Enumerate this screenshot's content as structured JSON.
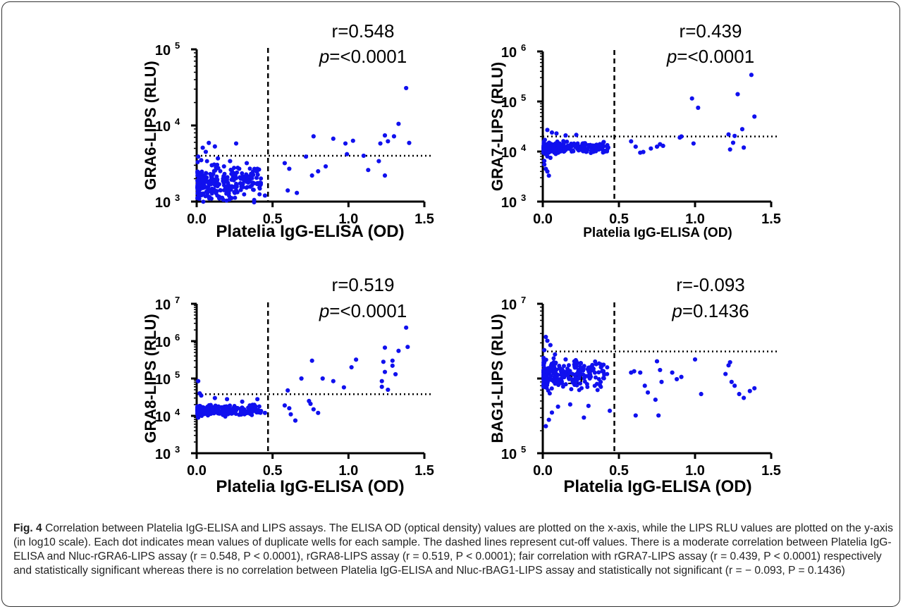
{
  "chart_data": [
    {
      "type": "scatter",
      "xlabel": "Platelia IgG-ELISA (OD)",
      "ylabel": "GRA6-LIPS (RLU)",
      "y_scale": "log10",
      "xlim": [
        0,
        1.5
      ],
      "ylim": [
        1000,
        100000
      ],
      "x_ticks": [
        "0.0",
        "0.5",
        "1.0",
        "1.5"
      ],
      "y_ticks": [
        "10",
        "10",
        "10"
      ],
      "y_tick_exponents": [
        "3",
        "4",
        "5"
      ],
      "stat_r": "r=0.548",
      "stat_p_label": "p",
      "stat_p_value": "=<0.0001",
      "x_cutoff": 0.47,
      "y_cutoff": 4000,
      "point_color": "#1010ee",
      "points": [
        [
          0.58,
          3200
        ],
        [
          0.61,
          2700
        ],
        [
          0.6,
          1400
        ],
        [
          0.66,
          1300
        ],
        [
          0.72,
          3900
        ],
        [
          0.77,
          7200
        ],
        [
          0.76,
          2200
        ],
        [
          0.8,
          2500
        ],
        [
          0.85,
          2900
        ],
        [
          0.9,
          6700
        ],
        [
          0.98,
          5800
        ],
        [
          0.99,
          4200
        ],
        [
          1.03,
          6300
        ],
        [
          1.1,
          4000
        ],
        [
          1.13,
          2600
        ],
        [
          1.2,
          3400
        ],
        [
          1.21,
          5800
        ],
        [
          1.24,
          2200
        ],
        [
          1.24,
          7400
        ],
        [
          1.26,
          6200
        ],
        [
          1.3,
          7200
        ],
        [
          1.33,
          10500
        ],
        [
          1.38,
          31000
        ],
        [
          1.4,
          5900
        ],
        [
          0.04,
          5100
        ],
        [
          0.08,
          5900
        ],
        [
          0.12,
          5300
        ],
        [
          0.26,
          5800
        ],
        [
          0.06,
          4500
        ],
        [
          0.01,
          3900
        ],
        [
          0.03,
          3500
        ],
        [
          0.14,
          3700
        ],
        [
          0.22,
          3400
        ],
        [
          0.33,
          3200
        ],
        [
          0.1,
          3000
        ],
        [
          0.18,
          2900
        ],
        [
          0.28,
          2700
        ],
        [
          0.4,
          2700
        ],
        [
          0.36,
          2300
        ],
        [
          0.02,
          1200
        ],
        [
          0.07,
          1300
        ],
        [
          0.15,
          1100
        ],
        [
          0.45,
          1200
        ]
      ]
    },
    {
      "type": "scatter",
      "xlabel": "Platelia IgG-ELISA (OD)",
      "ylabel": "GRA7-LIPS (RLU)",
      "y_scale": "log10",
      "xlim": [
        0,
        1.5
      ],
      "ylim": [
        1000,
        1000000
      ],
      "x_ticks": [
        "0.0",
        "0.5",
        "1.0",
        "1.5"
      ],
      "y_ticks": [
        "10",
        "10",
        "10",
        "10"
      ],
      "y_tick_exponents": [
        "3",
        "4",
        "5",
        "6"
      ],
      "stat_r": "r=0.439",
      "stat_p_label": "p",
      "stat_p_value": "=<0.0001",
      "x_cutoff": 0.47,
      "y_cutoff": 20000,
      "point_color": "#1010ee",
      "points": [
        [
          0.58,
          16000
        ],
        [
          0.61,
          12500
        ],
        [
          0.64,
          9500
        ],
        [
          0.66,
          9800
        ],
        [
          0.71,
          11500
        ],
        [
          0.75,
          12500
        ],
        [
          0.77,
          14000
        ],
        [
          0.79,
          13000
        ],
        [
          0.9,
          19000
        ],
        [
          0.91,
          20000
        ],
        [
          0.98,
          115000
        ],
        [
          1.02,
          75000
        ],
        [
          0.99,
          14500
        ],
        [
          1.22,
          22000
        ],
        [
          1.25,
          15000
        ],
        [
          1.26,
          20500
        ],
        [
          1.28,
          140000
        ],
        [
          1.31,
          28000
        ],
        [
          1.32,
          12000
        ],
        [
          1.37,
          340000
        ],
        [
          1.39,
          50000
        ],
        [
          1.23,
          11000
        ],
        [
          0.01,
          5500
        ],
        [
          0.02,
          4500
        ],
        [
          0.03,
          4000
        ],
        [
          0.04,
          3300
        ],
        [
          0.01,
          6500
        ],
        [
          0.03,
          8000
        ],
        [
          0.05,
          7500
        ],
        [
          0.06,
          24000
        ],
        [
          0.03,
          27000
        ],
        [
          0.09,
          23000
        ],
        [
          0.15,
          21000
        ],
        [
          0.22,
          21500
        ],
        [
          0.4,
          15500
        ],
        [
          0.43,
          12000
        ]
      ]
    },
    {
      "type": "scatter",
      "xlabel": "Platelia IgG-ELISA (OD)",
      "ylabel": "GRA8-LIPS (RLU)",
      "y_scale": "log10",
      "xlim": [
        0,
        1.5
      ],
      "ylim": [
        1000,
        10000000
      ],
      "x_ticks": [
        "0.0",
        "0.5",
        "1.0",
        "1.5"
      ],
      "y_ticks": [
        "10",
        "10",
        "10",
        "10",
        "10"
      ],
      "y_tick_exponents": [
        "3",
        "4",
        "5",
        "6",
        "7"
      ],
      "stat_r": "r=0.519",
      "stat_p_label": "p",
      "stat_p_value": "=<0.0001",
      "x_cutoff": 0.47,
      "y_cutoff": 38000,
      "point_color": "#1010ee",
      "points": [
        [
          0.58,
          19000
        ],
        [
          0.6,
          48000
        ],
        [
          0.61,
          16000
        ],
        [
          0.62,
          11000
        ],
        [
          0.65,
          7500
        ],
        [
          0.69,
          100000
        ],
        [
          0.74,
          25000
        ],
        [
          0.75,
          21000
        ],
        [
          0.76,
          300000
        ],
        [
          0.77,
          15000
        ],
        [
          0.8,
          12000
        ],
        [
          0.83,
          100000
        ],
        [
          0.9,
          85000
        ],
        [
          0.97,
          58000
        ],
        [
          1.02,
          200000
        ],
        [
          1.05,
          320000
        ],
        [
          1.22,
          60000
        ],
        [
          1.22,
          85000
        ],
        [
          1.23,
          280000
        ],
        [
          1.24,
          670000
        ],
        [
          1.24,
          150000
        ],
        [
          1.26,
          50000
        ],
        [
          1.29,
          300000
        ],
        [
          1.29,
          220000
        ],
        [
          1.31,
          130000
        ],
        [
          1.33,
          550000
        ],
        [
          1.38,
          2300000
        ],
        [
          1.39,
          700000
        ],
        [
          0.01,
          85000
        ],
        [
          0.02,
          40000
        ],
        [
          0.03,
          35000
        ],
        [
          0.12,
          30000
        ],
        [
          0.2,
          28000
        ],
        [
          0.3,
          24000
        ],
        [
          0.4,
          28000
        ],
        [
          0.45,
          12000
        ],
        [
          0.35,
          19000
        ],
        [
          0.01,
          9000
        ]
      ]
    },
    {
      "type": "scatter",
      "xlabel": "Platelia IgG-ELISA (OD)",
      "ylabel": "BAG1-LIPS (RLU)",
      "y_scale": "log10",
      "xlim": [
        0,
        1.5
      ],
      "ylim": [
        100000,
        10000000
      ],
      "x_ticks": [
        "0.0",
        "0.5",
        "1.0",
        "1.5"
      ],
      "y_ticks": [
        "10",
        "10"
      ],
      "y_tick_exponents": [
        "5",
        "7"
      ],
      "y_extra_tick_label": "10",
      "y_extra_tick_exponent": "6",
      "stat_r": "r=-0.093",
      "stat_p_label": "p",
      "stat_p_value": "=0.1436",
      "x_cutoff": 0.47,
      "y_cutoff": 2300000,
      "point_color": "#1010ee",
      "points": [
        [
          0.58,
          1200000
        ],
        [
          0.6,
          1250000
        ],
        [
          0.61,
          320000
        ],
        [
          0.64,
          1200000
        ],
        [
          0.67,
          800000
        ],
        [
          0.69,
          650000
        ],
        [
          0.74,
          520000
        ],
        [
          0.75,
          1700000
        ],
        [
          0.76,
          320000
        ],
        [
          0.77,
          1300000
        ],
        [
          0.78,
          900000
        ],
        [
          0.85,
          1200000
        ],
        [
          0.88,
          980000
        ],
        [
          0.91,
          1050000
        ],
        [
          1.0,
          1800000
        ],
        [
          1.04,
          620000
        ],
        [
          1.2,
          1150000
        ],
        [
          1.22,
          1500000
        ],
        [
          1.23,
          1650000
        ],
        [
          1.24,
          900000
        ],
        [
          1.26,
          800000
        ],
        [
          1.29,
          620000
        ],
        [
          1.32,
          550000
        ],
        [
          1.36,
          680000
        ],
        [
          1.39,
          740000
        ],
        [
          0.02,
          3600000
        ],
        [
          0.03,
          3200000
        ],
        [
          0.05,
          2800000
        ],
        [
          0.01,
          2400000
        ],
        [
          0.08,
          2100000
        ],
        [
          0.02,
          230000
        ],
        [
          0.04,
          280000
        ],
        [
          0.06,
          350000
        ],
        [
          0.1,
          420000
        ],
        [
          0.27,
          300000
        ],
        [
          0.3,
          430000
        ],
        [
          0.44,
          370000
        ],
        [
          0.18,
          450000
        ],
        [
          0.38,
          900000
        ],
        [
          0.33,
          1300000
        ],
        [
          0.25,
          1600000
        ],
        [
          0.22,
          1700000
        ],
        [
          0.15,
          1800000
        ]
      ]
    }
  ],
  "caption": {
    "figure_label": "Fig. 4",
    "text": " Correlation between Platelia IgG-ELISA and LIPS assays. The ELISA OD (optical density) values are plotted on the x-axis, while the LIPS RLU values are plotted on the y-axis (in log10 scale). Each dot indicates mean values of duplicate wells for each sample. The dashed lines represent cut-off values. There is a moderate correlation between Platelia IgG-ELISA and Nluc-rGRA6-LIPS assay (r = 0.548, P < 0.0001), rGRA8-LIPS assay (r = 0.519, P < 0.0001); fair correlation with rGRA7-LIPS assay (r = 0.439, P < 0.0001) respectively and statistically significant whereas there is no correlation between Platelia IgG-ELISA and Nluc-rBAG1-LIPS assay and statistically not significant (r = − 0.093, P = 0.1436)"
  }
}
